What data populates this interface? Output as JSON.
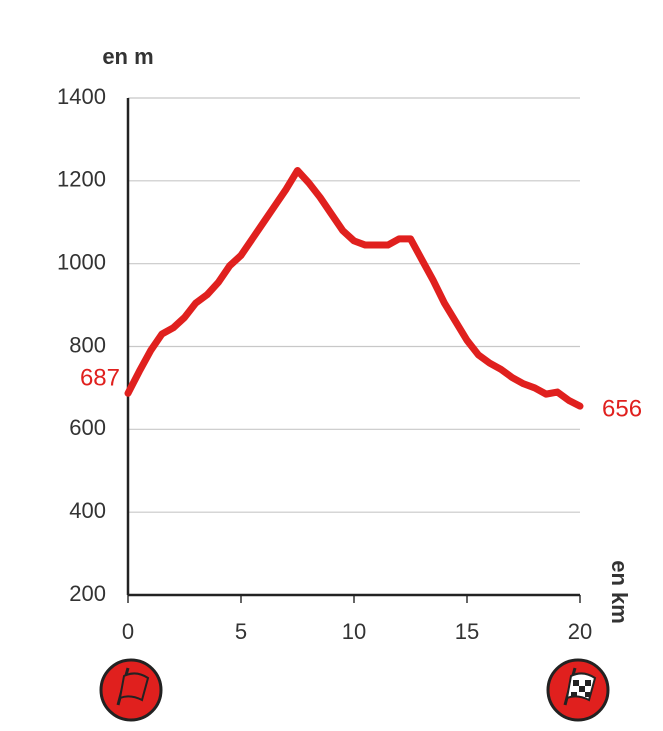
{
  "chart_data": {
    "type": "line",
    "y_label": "en m",
    "x_label": "en km",
    "x": [
      0,
      0.5,
      1,
      1.5,
      2,
      2.5,
      3,
      3.5,
      4,
      4.5,
      5,
      5.5,
      6,
      6.5,
      7,
      7.5,
      8,
      8.5,
      9,
      9.5,
      10,
      10.5,
      11,
      11.5,
      12,
      12.5,
      13,
      13.5,
      14,
      14.5,
      15,
      15.5,
      16,
      16.5,
      17,
      17.5,
      18,
      18.5,
      19,
      19.5,
      20
    ],
    "series": [
      {
        "color": "#e0201e",
        "values": [
          687,
          740,
          790,
          830,
          845,
          870,
          905,
          925,
          955,
          995,
          1020,
          1060,
          1100,
          1140,
          1180,
          1225,
          1195,
          1160,
          1120,
          1080,
          1055,
          1045,
          1045,
          1045,
          1060,
          1060,
          1010,
          960,
          905,
          860,
          815,
          780,
          760,
          745,
          725,
          710,
          700,
          685,
          690,
          670,
          656
        ]
      }
    ],
    "xlim": [
      0,
      20
    ],
    "xticks": [
      0,
      5,
      10,
      15,
      20
    ],
    "ylim": [
      200,
      1400
    ],
    "yticks": [
      200,
      400,
      600,
      800,
      1000,
      1200,
      1400
    ],
    "grid": true
  }
}
